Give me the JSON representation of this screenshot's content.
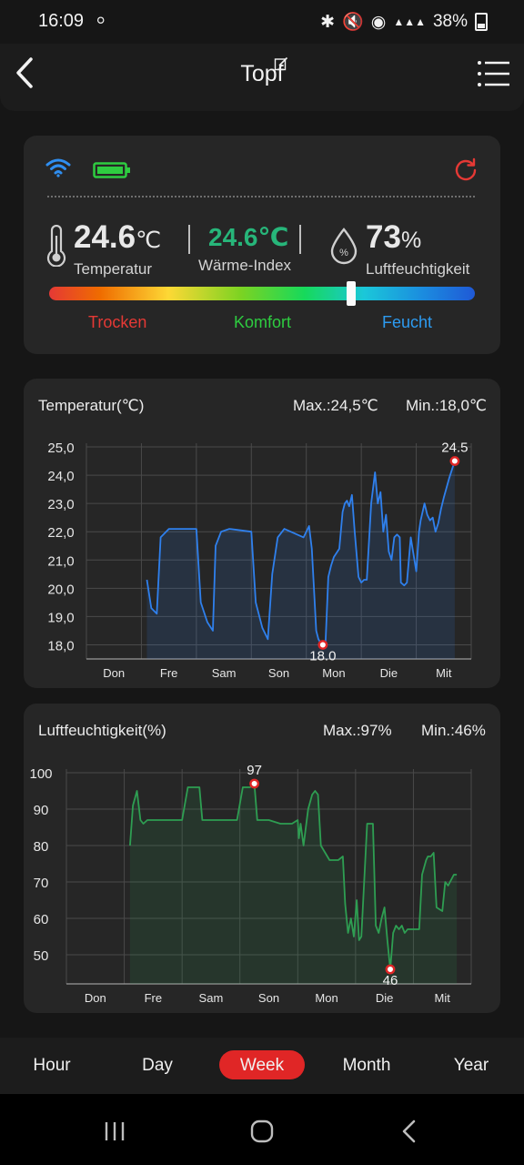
{
  "status_bar": {
    "time": "16:09",
    "battery": "38%"
  },
  "header": {
    "title": "Topf"
  },
  "device": {
    "temperature": {
      "value": "24.6",
      "unit": "℃",
      "label": "Temperatur"
    },
    "heat_index": {
      "value": "24.6℃",
      "label": "Wärme-Index"
    },
    "humidity": {
      "value": "73",
      "unit": "%",
      "label": "Luftfeuchtigkeit"
    },
    "comfort_level": 0.71,
    "comfort_labels": {
      "dry": "Trocken",
      "comfort": "Komfort",
      "humid": "Feucht"
    },
    "colors": {
      "dry": "#e53935",
      "comfort": "#2ecc40",
      "humid": "#2d9bf0",
      "heat_index": "#27b67a",
      "wifi": "#2f8ef0",
      "battery": "#2ecc40"
    }
  },
  "chart_data": [
    {
      "type": "line",
      "title": "Temperatur(℃)",
      "max_label": "Max.:24,5℃",
      "min_label": "Min.:18,0℃",
      "categories": [
        "Don",
        "Fre",
        "Sam",
        "Son",
        "Mon",
        "Die",
        "Mit"
      ],
      "yticks": [
        "25,0",
        "24,0",
        "23,0",
        "22,0",
        "21,0",
        "20,0",
        "19,0",
        "18,0"
      ],
      "ylim": [
        17.5,
        25.0
      ],
      "grid": true,
      "color": "#2f80ed",
      "max_point": {
        "x": 6.7,
        "y": 24.5,
        "label": "24.5"
      },
      "min_point": {
        "x": 4.3,
        "y": 18.0,
        "label": "18.0"
      },
      "series": [
        {
          "x": [
            1.1,
            1.18,
            1.28,
            1.35,
            1.5,
            1.6,
            2.0,
            2.08,
            2.2,
            2.3,
            2.35,
            2.45,
            2.6,
            3.0,
            3.08,
            3.2,
            3.3,
            3.38,
            3.48,
            3.6,
            3.95,
            4.05,
            4.1,
            4.18,
            4.22,
            4.28,
            4.35,
            4.4,
            4.45,
            4.5,
            4.6,
            4.66,
            4.7,
            4.74,
            4.78,
            4.83,
            4.88,
            4.95,
            5.0,
            5.05,
            5.1,
            5.18,
            5.25,
            5.3,
            5.35,
            5.4,
            5.45,
            5.5,
            5.55,
            5.6,
            5.65,
            5.7,
            5.72,
            5.78,
            5.83,
            5.9,
            6.0,
            6.05,
            6.08,
            6.15,
            6.2,
            6.25,
            6.3,
            6.35,
            6.4,
            6.45,
            6.5,
            6.6,
            6.7
          ],
          "values": [
            20.3,
            19.3,
            19.1,
            21.8,
            22.1,
            22.1,
            22.1,
            19.5,
            18.8,
            18.5,
            21.5,
            22.0,
            22.1,
            22.0,
            19.5,
            18.6,
            18.2,
            20.5,
            21.8,
            22.1,
            21.8,
            22.2,
            21.4,
            18.5,
            18.2,
            18.0,
            18.1,
            20.4,
            20.8,
            21.1,
            21.4,
            22.7,
            23.0,
            23.1,
            22.9,
            23.3,
            22.0,
            20.4,
            20.2,
            20.3,
            20.3,
            23.0,
            24.1,
            23.0,
            23.4,
            22.0,
            22.6,
            21.3,
            21.0,
            21.8,
            21.9,
            21.8,
            20.2,
            20.1,
            20.2,
            21.8,
            20.6,
            22.0,
            22.4,
            23.0,
            22.6,
            22.4,
            22.5,
            22.0,
            22.3,
            22.8,
            23.2,
            23.9,
            24.5
          ]
        }
      ]
    },
    {
      "type": "area",
      "title": "Luftfeuchtigkeit(%)",
      "max_label": "Max.:97%",
      "min_label": "Min.:46%",
      "categories": [
        "Don",
        "Fre",
        "Sam",
        "Son",
        "Mon",
        "Die",
        "Mit"
      ],
      "yticks": [
        "100",
        "90",
        "80",
        "70",
        "60",
        "50"
      ],
      "ylim": [
        42,
        100
      ],
      "grid": true,
      "color": "#2e9e52",
      "max_point": {
        "x": 3.25,
        "y": 97,
        "label": "97"
      },
      "min_point": {
        "x": 5.6,
        "y": 46,
        "label": "46"
      },
      "series": [
        {
          "x": [
            1.1,
            1.15,
            1.22,
            1.28,
            1.33,
            1.4,
            1.6,
            1.9,
            2.0,
            2.1,
            2.15,
            2.2,
            2.3,
            2.35,
            2.42,
            2.6,
            2.95,
            3.05,
            3.12,
            3.18,
            3.25,
            3.3,
            3.37,
            3.5,
            3.7,
            3.9,
            4.0,
            4.02,
            4.05,
            4.1,
            4.18,
            4.25,
            4.3,
            4.35,
            4.4,
            4.55,
            4.6,
            4.7,
            4.78,
            4.82,
            4.87,
            4.92,
            4.97,
            5.02,
            5.06,
            5.1,
            5.2,
            5.25,
            5.3,
            5.35,
            5.4,
            5.45,
            5.5,
            5.55,
            5.6,
            5.65,
            5.7,
            5.75,
            5.8,
            5.85,
            5.9,
            6.0,
            6.05,
            6.1,
            6.15,
            6.22,
            6.25,
            6.3,
            6.35,
            6.4,
            6.5,
            6.55,
            6.6,
            6.7,
            6.75
          ],
          "values": [
            80,
            91,
            95,
            87,
            86,
            87,
            87,
            87,
            87,
            96,
            96,
            96,
            96,
            87,
            87,
            87,
            87,
            96,
            96,
            96,
            97,
            87,
            87,
            87,
            86,
            86,
            87,
            82,
            86,
            80,
            90,
            94,
            95,
            94,
            80,
            76,
            76,
            76,
            77,
            64,
            56,
            60,
            55,
            65,
            54,
            55,
            86,
            86,
            86,
            58,
            56,
            60,
            63,
            54,
            46,
            56,
            58,
            57,
            58,
            56,
            57,
            57,
            57,
            57,
            72,
            76,
            77,
            77,
            78,
            63,
            62,
            70,
            69,
            72,
            72
          ]
        }
      ]
    }
  ],
  "tabs": [
    {
      "label": "Hour",
      "active": false
    },
    {
      "label": "Day",
      "active": false
    },
    {
      "label": "Week",
      "active": true
    },
    {
      "label": "Month",
      "active": false
    },
    {
      "label": "Year",
      "active": false
    }
  ]
}
